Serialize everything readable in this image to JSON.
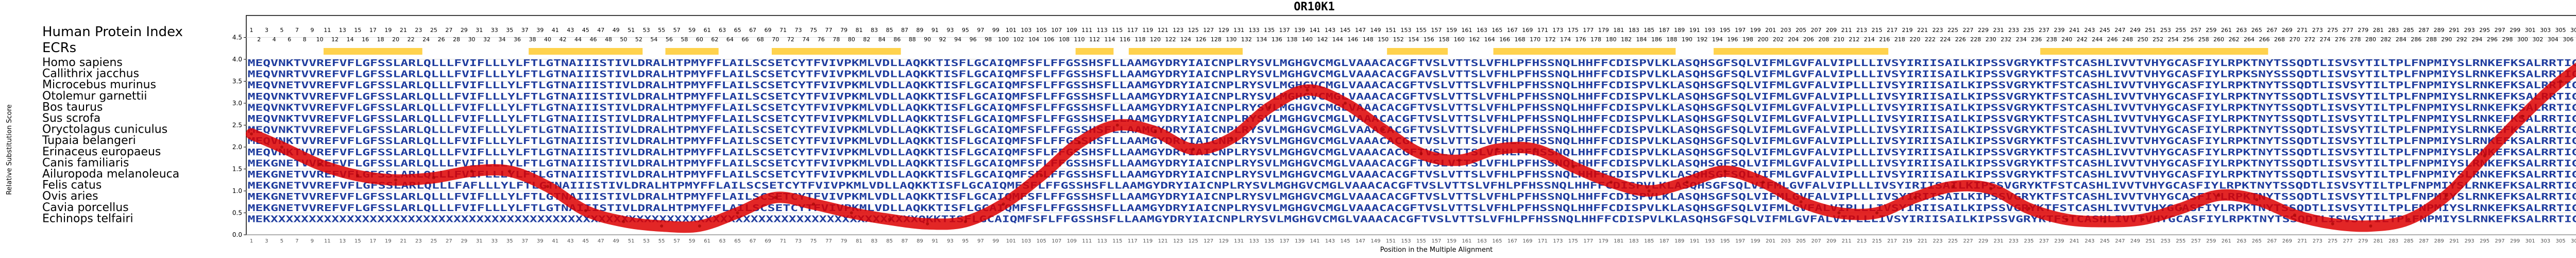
{
  "chart_data": {
    "type": "line",
    "title": "OR10K1",
    "xlabel": "Position in the Multiple Alignment",
    "ylabel": "Relative Substitution Score",
    "xlim": [
      1,
      313
    ],
    "ylim": [
      0.0,
      5.0
    ],
    "y_ticks": [
      "0.0",
      "0.5",
      "1.0",
      "1.5",
      "2.0",
      "2.5",
      "3.0",
      "3.5",
      "4.0",
      "4.5"
    ],
    "y_tick_values": [
      0,
      0.5,
      1,
      1.5,
      2,
      2.5,
      3,
      3.5,
      4,
      4.5
    ],
    "grid": true,
    "series_color": "#dd0000",
    "legend_title": "Human Protein Index",
    "ecr_label": "ECRs",
    "ecr_color": "#ffd24d",
    "ecr_regions": [
      [
        11,
        23
      ],
      [
        38,
        52
      ],
      [
        56,
        62
      ],
      [
        70,
        86
      ],
      [
        110,
        114
      ],
      [
        117,
        131
      ],
      [
        151,
        158
      ],
      [
        165,
        188
      ],
      [
        194,
        216
      ],
      [
        237,
        252
      ],
      [
        253,
        266
      ]
    ],
    "species": [
      "Homo sapiens",
      "Callithrix jacchus",
      "Microcebus murinus",
      "Otolemur garnettii",
      "Bos taurus",
      "Sus scrofa",
      "Oryctolagus cuniculus",
      "Tupaia belangeri",
      "Erinaceus europaeus",
      "Canis familiaris",
      "Ailuropoda melanoleuca",
      "Felis catus",
      "Ovis aries",
      "Cavia porcellus",
      "Echinops telfairi"
    ],
    "sequences": [
      "MEQVNKTVVREFVFLGFSSLARLQLLLFVIFLLLYLFTLGTNAIIISTIVLDRALHTPMYFFLAILSCSETCYTFVIVPKMLVDLLAQKKTISFLGCAIQMFSFLFFGSSHSFLLAAMGYDRYIAICNPLRYSVLMGHGVCMGLVAAACACGFTVSLVTTSLVFHLPFHSSNQLHHFFCDISPVLKLASQHSGFSQLVIFMLGVFALVIPLLLIVSYIRIISAILKIPSSVGRYKTFSTCASHLIVVTVHYGCASFIYLRPKTNYTSSQDTLISVSYTILTPLFNPMIYSLRNKEFKSALRRTIGQTFYPL",
      "MEQVNRTVVREFVFLGFSSLARLQLLLFVIFLLLYLFTLGTNAIIISTIVLDRALHTPMYFFLAILSCSETCYTFVIVPKMLVDLLAQKKTISFLGCAIQMFSFLFFGSSHSFLLAAMGYDRYIAICNPLRYSVLMGHGVCMGLVAAACACGFAVSLVTTSLVFHLPFHSSNQLHHFFCDISPVLKLASQHSGFSQLVIFMLGVFALVIPLLLIVSYIRIISAILKIPSSVGRYKTFSTCASHLIVVTVHYGCASFIYLRPKSNYSSSQDTLISVSYTILTPLFNPMIYSLRNKEFKSALRRTIGQTFYPL",
      "MEQVNETVVREFVFLGFSSLARLQLLLFVIFLLLYLFTLGTNAIIISTIVLDRALHTPMYFFLAILSCSETCYTFVIVPKMLVDLLAQKKTISFLGCAIQMFSFLFFGSSHSFLLAAMGYDRYIAICNPLRYSVLMGHGVCMGLVAAACACGFTVSLVTTSLVFHLPFHSSNQLHHFFCDISPVLKLASQHSGFSQLVIFMLGVFALVIPLLLIVSYIRIISAILKIPSSVGRYKTFSTCASHLIVVTVHYGCASFIYLRPKTNYTSSQDTLISVSYTILTPLFNPMIYSLRNKEFKSALRRTIGQTFYPL",
      "MEQVNKTVVREFVFLGFSSLARLQLLLFVIFLLLYLFTLGTNAIIISTIVLDRALHTPMYFFLAILSCSETCYTFVIVPKMLVDLLAQKKTISFLGCAIQMFSFLFFGSSHSFLLAAMGYDRYIAICNPLRYSVLMGHGVCMGLVAAACACGFTVSLVTTSLVFHLPFHSSNQLHHFFCDISPVLKLASQHSGFSQLVIFMLGVFALVIPLLLIVSYIRIISAILKIPSSVGRYKTFSTCASHLIVVTVHYGCASFIYLRPKTNYTSSQDTLISVSYTILTPLFNPMIYSLRNKEFKSALRRTIGQTFYPL",
      "MEQVNKTVVREFVFLGFSSLARLQLLLFVIFLLLYLFTLGTNAIIISTIVLDRALHTPMYFFLAILSCSETCYTFVIVPKMLVDLLAQKKTISFLGCAIQMFSFLFFGSSHSFLLAAMGYDRYIAICNPLRYSVLMGHGVCMGLVAAACACGFTVSLVTTSLVFHLPFHSSNQLHHFFCDISPVLKLASQHSGFSQLVIFMLGVFALVIPLLLIVSYIRIISAILKIPSSVGRYKTFSTCASHLIVVTVHYGCASFIYLRPKTNYTSSQDTLISVSYTILTPLFNPMIYSLRNKEFKSALRRTIGQTFYPL",
      "MEQVNKTVVREFVFLGFSSLARLQLLLFVIFLLLYLFTLGTNAIIISTIVLDRALHTPMYFFLAILSCSETCYTFVIVPKMLVDLLAQKKTISFLGCAIQMFSFLFFGSSHSFLLAAMGYDRYIAICNPLRYSVLMGHGVCMGLVAAACACGFTVSLVTTSLVFHLPFHSSNQLHHFFCDISPVLKLASQHSGFSQLVIFMLGVFALVIPLLLIVSYIRIISAILKIPSSVGRYKTFSTCASHLIVVTVHYGCASFIYLRPKTNYTSSQDTLISVSYTILTPLFNPMIYSLRNKEFKSALRRTIGQTFYPL",
      "MEQVNKTVVREFVFLGFSSLARLQLLLFVIFLLLYLFTLGTNAIIISTIVLDRALHTPMYFFLAILSCSETCYTFVIVPKMLVDLLAQKKTISFLGCAIQMFSFLFFGSSHSFLLAAMGYDRYIAICNPLRYSVLMGHGVCMGLVAAACACGFTVSLVTTSLVFHLPFHSSNQLHHFFCDISPVLKLASQHSGFSQLVIFMLGVFALVIPLLLIVSYIRIISAILKIPSSVGRYKTFSTCASHLIVVTVHYGCASFIYLRPKTNYTSSQDTLISVSYTILTPLFNPMIYSLRNKEFKSALRRTIGQTFYPL",
      "MEQVNKTVVREFVFLGFSSLARLQLLLFVIFLLLYLFTLGTNAIIISTIVLDRALHTPMYFFLAILSCSETCYTFVIVPKMLVDLLAQKKTISFLGCAIQMFSFLFFGSSHSFLLAAMGYDRYIAICNPLRYSVLMGHGVCMGLVAAACACGFTVSLVTTSLVFHLPFHSSNQLHHFFCDISPVLKLASQHSGFSQLVIFMLGVFALVIPLLLIVSYIRIISAILKIPSSVGRYKTFSTCASHLIVVTVHYGCASFIYLRPKTNYTSSQDTLISVSYTILTPLFNPMIYSLRNKEFKSALRRTIGQTFYPL",
      "MEQVNKTVVREFVFLGFSSLARLQLLLFVIFLLLYLFTLGTNAIIISTIVLDRALHTPMYFFLAILSCSETCYTFVIVPKMLVDLLAQKKTISFLGCAIQMFSFLFFGSSHSFLLAAMGYDRYIAICNPLRYSVLMGHGVCMGLVAAACACGFTVSLVTTSLVFHLPFHSSNQLHHFFCDISPVLKLASQHSGFSQLVIFMLGVFALVIPLLLIVSYIRIISAILKIPSSVGRYKTFSTCASHLIVVTVHYGCASFIYLRPKTNYTSSQDTLISVSYTILTPLFNPMIYSLRNKEFKSALRRTIGQTFYPL",
      "MEKGNETVVREFVFLGFSSLARLQLLLFVIFLLLYLFTLGTNAIIISTIVLDRALHTPMYFFLAILSCSETCYTFVIVPKMLVDLLAQKKTISFLGCAIQMFSFLFFGSSHSFLLAAMGYDRYIAICNPLRYSVLMGHGVCMGLVAAACACGFTVSLVTTSLVFHLPFHSSNQLHHFFCDISPVLKLASQHSGFSQLVIFMLGVFALVIPLLLIVSYIRIISAILKIPSSVGRYKTFSTCASHLIVVTVHYGCASFIYLRPKTNYTSSQDTLISVSYTILTPLFNPMIYSLRNKEFKSALRRTIGQTFYPL",
      "MEKGNETVVREFVFLGFSSLARLQLLLFVIFLLLYLFTLGTNAIIISTIVLDRALHTPMYFFLAILSCSETCYTFVIVPKMLVDLLAQKKTISFLGCAIQMFSFLFFGSSHSFLLAAMGYDRYIAICNPLRYSVLMGHGVCMGLVAAACACGFTVSLVTTSLVFHLPFHSSNQLHHFFCDISPVLKLASQHSGFSQLVIFMLGVFALVIPLLLIVSYIRIISAILKIPSSVGRYKTFSTCASHLIVVTVHYGCASFIYLRPKTNYTSSQDTLISVSYTILTPLFNPMIYSLRNKEFKSALRRTIGQTFYPL",
      "MEKGNETVVREFVFLGFSSLARLQLLLFAFLLLYLFTLGTNAIIISTIVLDRALHTPMYFFLAILSCSETCYTFVIVPKMLVDLLAQKKTISFLGCAIQMFSFLFFGSSHSFLLAAMGYDRYIAICNPLRYSVLMGHGVCMGLVAAACACGFTVSLVTTSLVFHLPFHSSNQLHHFFCDISPVLKLASQHSGFSQLVIFMLGVFALVIPLLLIVSYIRIISAILKIPSSVGRYKTFSTCASHLIVVTVHYGCASFIYLRPKTNYTSSQDTLISVSYTILTPLFNPMIYSLRNKEFKSALRRTIGQTFYPL",
      "MEKGNETVVREFVFLGFSSLARLQLLLFVIFLLLYLFTLGTNAIIISTIVLDRALHTPMYFFLAILSCSETCYTFVIVPKMLVDLLAQKKTISFLGCAIQMFSFLFFGSSHSFLLAAMGYDRYIAICNPLRYSVLMGHGVCMGLVAAACACGFTVSLVTTSLVFHLPFHSSNQLHHFFCDISPVLKLASQHSGFSQLVIFMLGVFALVIPLLLIVSYIRIISAILKIPSSVGRYKTFSTCASHLIVVTVHYGCASFIYLRPKTNYTSSQDTLISVSYTILTPLFNPMIYSLRNKEFKSALRRTIGQTFYPL",
      "MEKGNETVVREFVFLGFSSLARLQLLLFVIFLLLYLFTLGTNAIIISTIVLDRALHTPMYFFLAILSCSETCYTFVIVPKMLVDLLAQKKTISFLGCAIQMFSFLFFGSSHSFLLAAMGYDRYIAICNPLRYSVLMGHGVCMGLVAAACACGFTVSLVTTSLVFHLPFHSSNQLHHFFCDISPVLKLASQHSGFSQLVIFMLGVFALVIPLLLIVSYIRIISAILKIPSSVGRYKTFSTCASHLIVVTVHYGCASFIYLRPKTNYTSSQDTLISVSYTILTPLFNPMIYSLRNKEFKSALRRTIGQTFYPL",
      "MEKXXXXXXXXXXXXXXXXXXXXXXXXXXXXXXXXXXXXXXXXXXXXXXXXXXXXXXXXXXXXXXXXXXXXXXXXXXXXXXXXXXXXXQKKTISFLGCAIQMFSFLFFGSSHSFLLAAMGYDRYIAICNPLRYSVLMGHGVCMGLVAAACACGFTVSLVTTSLVFHLPFHSSNQLHHFFCDISPVLKLASQHSGFSQLVIFMLGVFALVIPLLLIVSYIRIISAILKIPSSVGRYKTFSTCASHLIVVTVHYGCASFIYLRPKTNYTSSQDTLISVSYTILTPLFNPMIYSLRNKEFKSALRRTIGQTFYPL"
    ],
    "curve_x": [
      1,
      5,
      10,
      15,
      20,
      25,
      30,
      35,
      40,
      45,
      50,
      55,
      60,
      65,
      70,
      75,
      80,
      85,
      90,
      95,
      100,
      105,
      110,
      115,
      120,
      125,
      130,
      135,
      140,
      145,
      150,
      155,
      160,
      165,
      170,
      175,
      180,
      185,
      190,
      195,
      200,
      205,
      210,
      215,
      220,
      225,
      230,
      235,
      240,
      245,
      250,
      255,
      260,
      265,
      270,
      275,
      280,
      285,
      290,
      295,
      300,
      305,
      310,
      313
    ],
    "curve_y": [
      2.3,
      2.0,
      1.6,
      1.35,
      1.25,
      1.3,
      1.45,
      1.45,
      1.1,
      0.55,
      0.3,
      0.2,
      0.2,
      0.5,
      0.85,
      0.7,
      0.5,
      0.35,
      0.25,
      0.3,
      0.7,
      1.35,
      2.1,
      2.5,
      2.35,
      1.95,
      2.2,
      2.9,
      3.3,
      3.0,
      2.4,
      1.85,
      1.7,
      1.95,
      1.95,
      1.55,
      1.2,
      1.0,
      1.2,
      1.45,
      1.2,
      0.75,
      0.5,
      0.5,
      0.85,
      1.1,
      1.05,
      0.6,
      0.35,
      0.3,
      0.35,
      0.6,
      0.9,
      0.8,
      0.45,
      0.25,
      0.2,
      0.35,
      0.9,
      1.8,
      2.7,
      3.5,
      4.1,
      4.3
    ]
  }
}
